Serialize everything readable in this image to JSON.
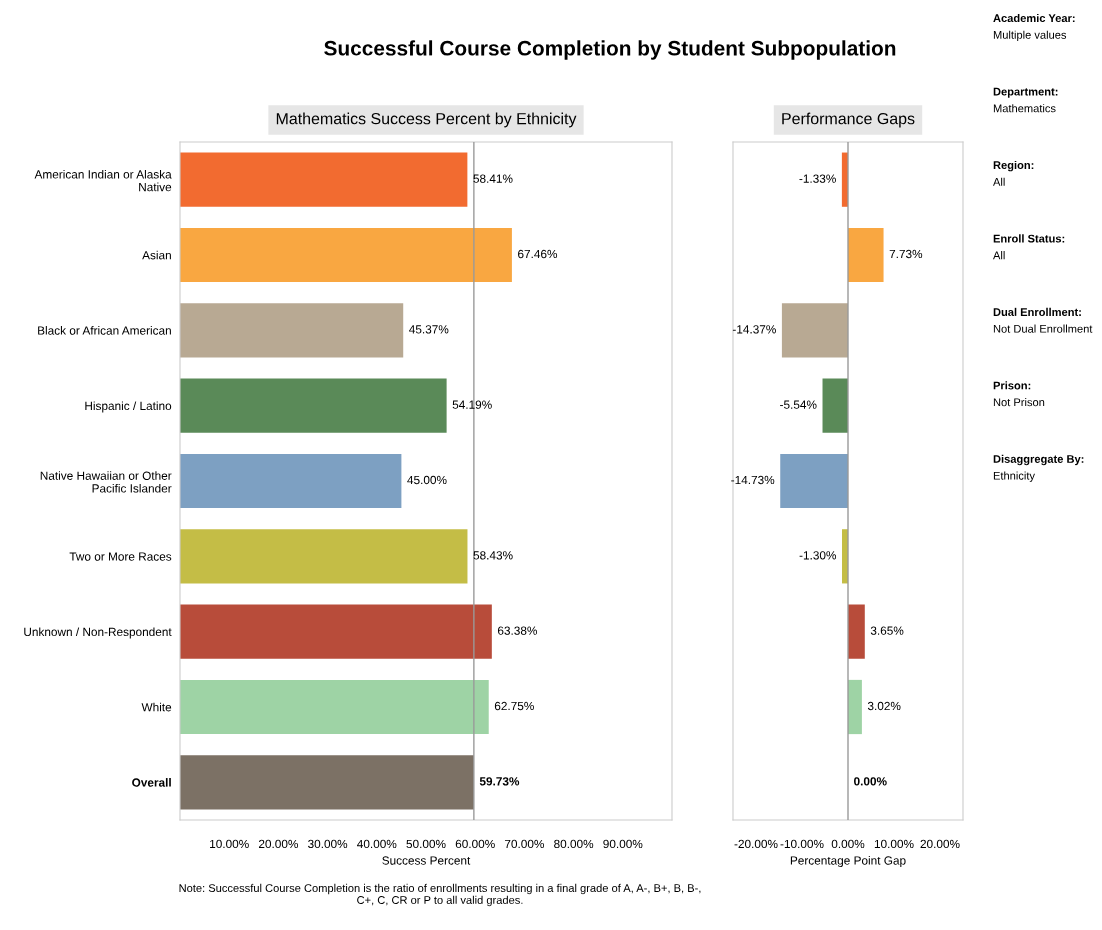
{
  "chart_data": [
    {
      "type": "bar",
      "orientation": "horizontal",
      "title": "Successful Course Completion by Student Subpopulation",
      "subtitle": "Mathematics Success Percent by Ethnicity",
      "xlabel": "Success Percent",
      "categories": [
        "American Indian or Alaska Native",
        "Asian",
        "Black or African American",
        "Hispanic / Latino",
        "Native Hawaiian or Other Pacific Islander",
        "Two or More Races",
        "Unknown / Non-Respondent",
        "White",
        "Overall"
      ],
      "values": [
        58.41,
        67.46,
        45.37,
        54.19,
        45.0,
        58.43,
        63.38,
        62.75,
        59.73
      ],
      "colors": [
        "#f26b30",
        "#f9a741",
        "#b8a993",
        "#5a8a58",
        "#7da0c2",
        "#c4bd46",
        "#b84c3a",
        "#9ed3a5",
        "#7c7165"
      ],
      "value_labels": [
        "58.41%",
        "67.46%",
        "45.37%",
        "54.19%",
        "45.00%",
        "58.43%",
        "63.38%",
        "62.75%",
        "59.73%"
      ],
      "xlim": [
        0,
        100
      ],
      "xticks": [
        {
          "value": 10,
          "label": "10.00%"
        },
        {
          "value": 20,
          "label": "20.00%"
        },
        {
          "value": 30,
          "label": "30.00%"
        },
        {
          "value": 40,
          "label": "40.00%"
        },
        {
          "value": 50,
          "label": "50.00%"
        },
        {
          "value": 60,
          "label": "60.00%"
        },
        {
          "value": 70,
          "label": "70.00%"
        },
        {
          "value": 80,
          "label": "80.00%"
        },
        {
          "value": 90,
          "label": "90.00%"
        }
      ],
      "ref_lines": [
        {
          "axis": "x",
          "value": 59.73,
          "color": "#999999"
        }
      ],
      "annotations": [
        "Note: Successful Course Completion is the ratio of enrollments resulting in a final grade of A, A-, B+, B, B-, C+, C, CR or P to all valid grades."
      ]
    },
    {
      "type": "bar",
      "orientation": "horizontal",
      "title": "Performance Gaps",
      "xlabel": "Percentage Point Gap",
      "tick_labels": "x",
      "categories": [
        null,
        null,
        null,
        null,
        null,
        null,
        null,
        null,
        null
      ],
      "values": [
        -1.33,
        7.73,
        -14.37,
        -5.54,
        -14.73,
        -1.3,
        3.65,
        3.02,
        0.0
      ],
      "colors": [
        "#f26b30",
        "#f9a741",
        "#b8a993",
        "#5a8a58",
        "#7da0c2",
        "#c4bd46",
        "#b84c3a",
        "#9ed3a5",
        "#7c7165"
      ],
      "value_labels": [
        "-1.33%",
        "7.73%",
        "-14.37%",
        "-5.54%",
        "-14.73%",
        "-1.30%",
        "3.65%",
        "3.02%",
        "0.00%"
      ],
      "xlim": [
        -25,
        25
      ],
      "xticks": [
        {
          "value": -20,
          "label": "-20.00%"
        },
        {
          "value": -10,
          "label": "-10.00%"
        },
        {
          "value": 0,
          "label": "0.00%"
        },
        {
          "value": 10,
          "label": "10.00%"
        },
        {
          "value": 20,
          "label": "20.00%"
        }
      ],
      "ref_lines": [
        {
          "axis": "x",
          "value": 0,
          "color": "#999999"
        }
      ]
    },
    {
      "type": "other",
      "annotations": [
        "Academic Year:",
        "Multiple values",
        "Department:",
        "Mathematics",
        "Region:",
        "All",
        "Enroll Status:",
        "All",
        "Dual Enrollment:",
        "Not Dual Enrollment",
        "Prison:",
        "Not Prison",
        "Disaggregate By:",
        "Ethnicity"
      ]
    }
  ]
}
